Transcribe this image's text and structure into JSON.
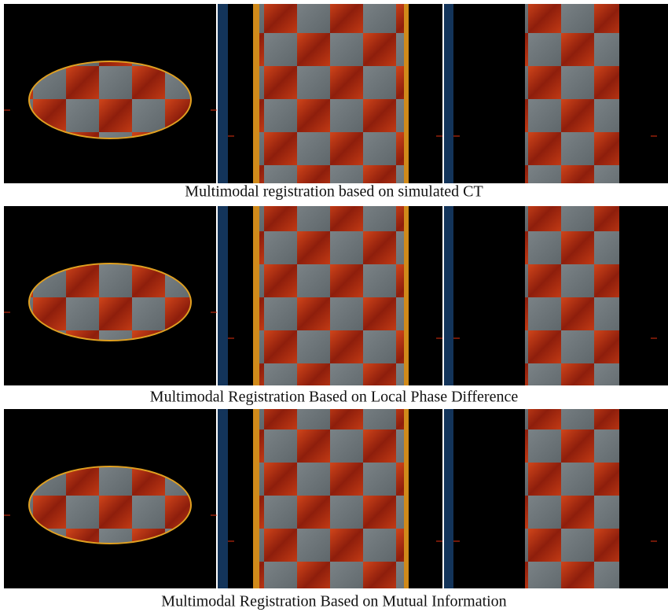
{
  "rows": [
    {
      "caption": "Multimodal registration based on simulated CT"
    },
    {
      "caption": "Multimodal Registration Based on Local Phase Difference"
    },
    {
      "caption": "Multimodal Registration Based on Mutual Information"
    }
  ]
}
